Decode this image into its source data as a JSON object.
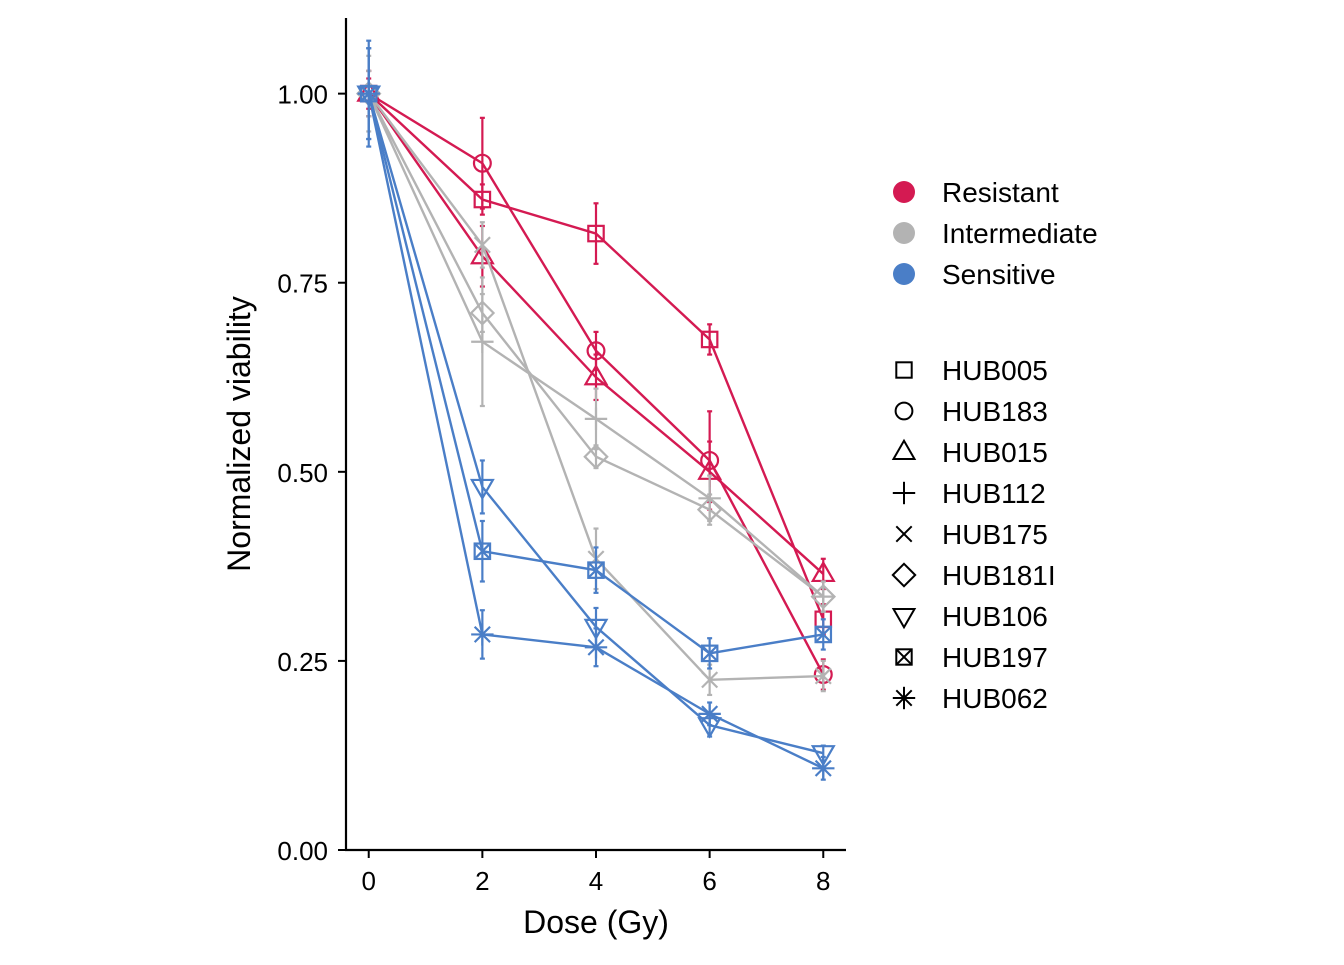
{
  "chart_data": {
    "type": "line",
    "title": "",
    "xlabel": "Dose (Gy)",
    "ylabel": "Normalized viability",
    "x": [
      0,
      2,
      4,
      6,
      8
    ],
    "xticks": [
      "0",
      "2",
      "4",
      "6",
      "8"
    ],
    "yticks": [
      "0.00",
      "0.25",
      "0.50",
      "0.75",
      "1.00"
    ],
    "xlim": [
      -0.4,
      8.4
    ],
    "ylim": [
      0,
      1.1
    ],
    "grid": false,
    "legend_placement": "right",
    "group_legend": [
      {
        "label": "Resistant",
        "color": "#D41A52"
      },
      {
        "label": "Intermediate",
        "color": "#B3B3B3"
      },
      {
        "label": "Sensitive",
        "color": "#4A7EC7"
      }
    ],
    "shape_legend": [
      {
        "label": "HUB005",
        "shape": "square-icon"
      },
      {
        "label": "HUB183",
        "shape": "circle-icon"
      },
      {
        "label": "HUB015",
        "shape": "triangle-icon"
      },
      {
        "label": "HUB112",
        "shape": "plus-icon"
      },
      {
        "label": "HUB175",
        "shape": "cross-icon"
      },
      {
        "label": "HUB181I",
        "shape": "diamond-icon"
      },
      {
        "label": "HUB106",
        "shape": "triangle-down-icon"
      },
      {
        "label": "HUB197",
        "shape": "boxed-x-icon"
      },
      {
        "label": "HUB062",
        "shape": "asterisk-icon"
      }
    ],
    "series": [
      {
        "label": "HUB005",
        "group": "Resistant",
        "shape": "square-icon",
        "values": [
          1.0,
          0.86,
          0.815,
          0.675,
          0.305
        ],
        "err": [
          0.02,
          0.02,
          0.04,
          0.02,
          0.02
        ]
      },
      {
        "label": "HUB183",
        "group": "Resistant",
        "shape": "circle-icon",
        "values": [
          1.0,
          0.908,
          0.66,
          0.515,
          0.232
        ],
        "err": [
          0.03,
          0.06,
          0.025,
          0.065,
          0.02
        ]
      },
      {
        "label": "HUB015",
        "group": "Resistant",
        "shape": "triangle-icon",
        "values": [
          1.0,
          0.785,
          0.625,
          0.5,
          0.365
        ],
        "err": [
          0.03,
          0.04,
          0.03,
          0.04,
          0.02
        ]
      },
      {
        "label": "HUB112",
        "group": "Intermediate",
        "shape": "plus-icon",
        "values": [
          1.0,
          0.672,
          0.57,
          0.465,
          0.335
        ],
        "err": [
          0.05,
          0.085,
          0.04,
          0.03,
          0.02
        ]
      },
      {
        "label": "HUB175",
        "group": "Intermediate",
        "shape": "cross-icon",
        "values": [
          1.0,
          0.8,
          0.385,
          0.225,
          0.23
        ],
        "err": [
          0.03,
          0.03,
          0.04,
          0.02,
          0.02
        ]
      },
      {
        "label": "HUB181I",
        "group": "Intermediate",
        "shape": "diamond-icon",
        "values": [
          1.0,
          0.71,
          0.52,
          0.45,
          0.335
        ],
        "err": [
          0.03,
          0.025,
          0.015,
          0.02,
          0.02
        ]
      },
      {
        "label": "HUB106",
        "group": "Sensitive",
        "shape": "triangle-down-icon",
        "values": [
          1.0,
          0.48,
          0.295,
          0.165,
          0.128
        ],
        "err": [
          0.06,
          0.035,
          0.025,
          0.015,
          0.01
        ]
      },
      {
        "label": "HUB197",
        "group": "Sensitive",
        "shape": "boxed-x-icon",
        "values": [
          1.0,
          0.395,
          0.37,
          0.26,
          0.285
        ],
        "err": [
          0.06,
          0.04,
          0.03,
          0.02,
          0.02
        ]
      },
      {
        "label": "HUB062",
        "group": "Sensitive",
        "shape": "asterisk-icon",
        "values": [
          1.0,
          0.285,
          0.268,
          0.18,
          0.108
        ],
        "err": [
          0.07,
          0.032,
          0.025,
          0.015,
          0.015
        ]
      }
    ]
  }
}
